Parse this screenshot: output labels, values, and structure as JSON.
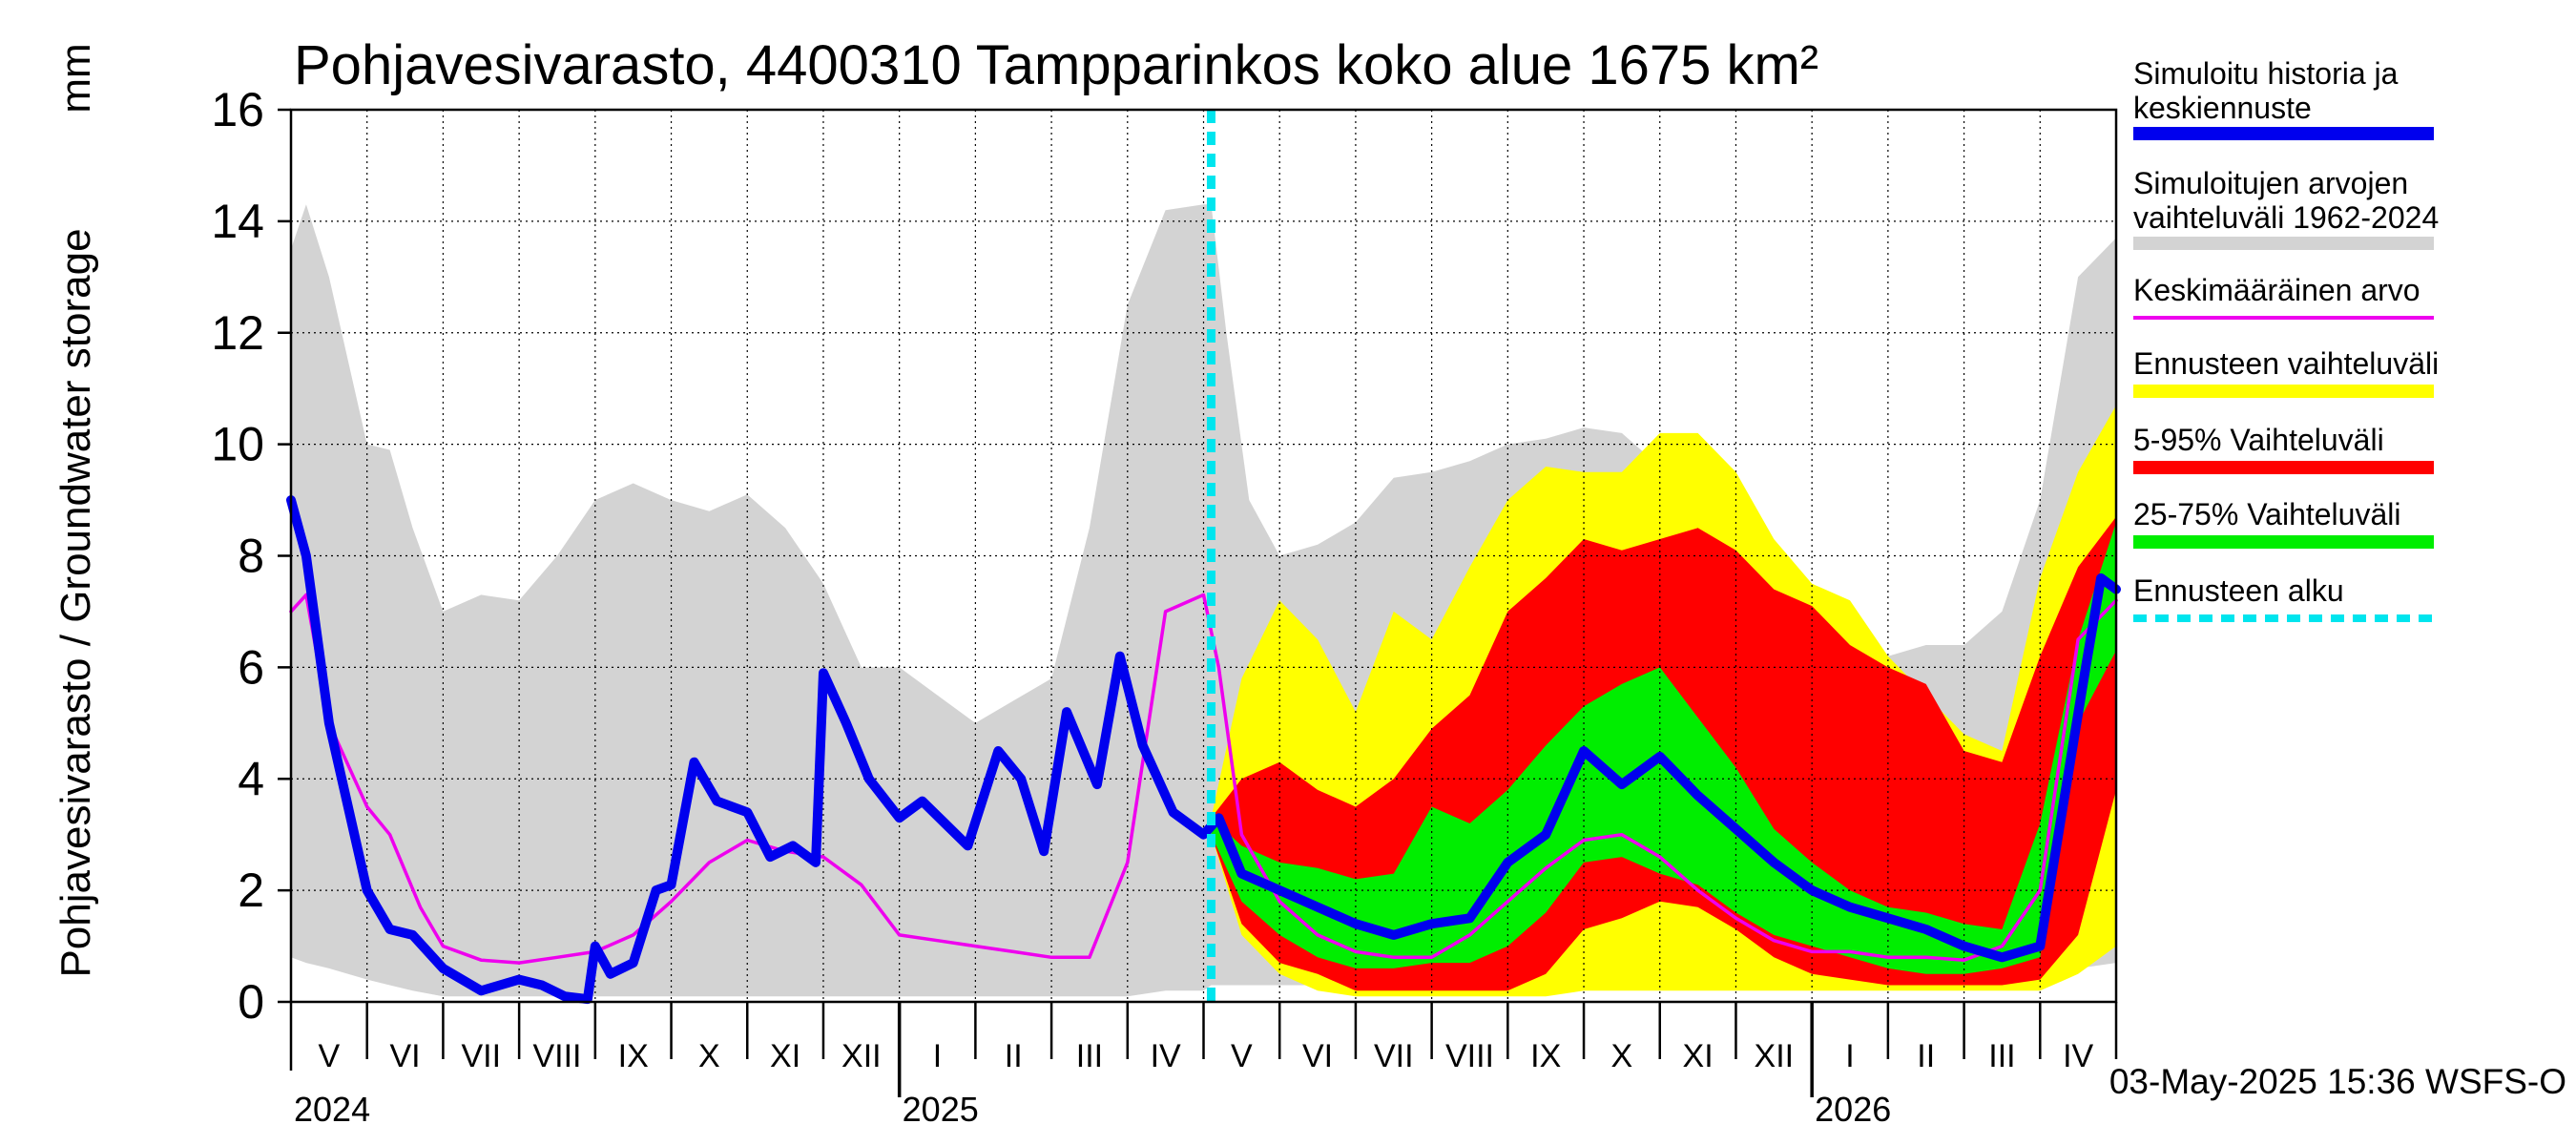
{
  "chart_data": {
    "type": "area",
    "title": "Pohjavesivarasto, 4400310 Tampparinkos koko alue 1675 km²",
    "ylabel": "Pohjavesivarasto / Groundwater storage",
    "yunit": "mm",
    "ylim": [
      0,
      16
    ],
    "yticks": [
      0,
      2,
      4,
      6,
      8,
      10,
      12,
      14,
      16
    ],
    "xlim": [
      0,
      24
    ],
    "x_unit": "months since 1 May 2024",
    "month_labels": [
      "V",
      "VI",
      "VII",
      "VIII",
      "IX",
      "X",
      "XI",
      "XII",
      "I",
      "II",
      "III",
      "IV",
      "V",
      "VI",
      "VII",
      "VIII",
      "IX",
      "X",
      "XI",
      "XII",
      "I",
      "II",
      "III",
      "IV"
    ],
    "year_labels": [
      {
        "label": "2024",
        "x": 0
      },
      {
        "label": "2025",
        "x": 8
      },
      {
        "label": "2026",
        "x": 20
      }
    ],
    "forecast_start_x": 12.1,
    "legend": [
      {
        "label": "Simuloitu historia ja keskiennuste",
        "color": "#0000ee",
        "style": "thick"
      },
      {
        "label": "Simuloitujen arvojen vaihteluväli 1962-2024",
        "color": "#d3d3d3",
        "style": "thick"
      },
      {
        "label": "Keskimääräinen arvo",
        "color": "#ee00ee",
        "style": "thin"
      },
      {
        "label": "Ennusteen vaihteluväli",
        "color": "#ffff00",
        "style": "thick"
      },
      {
        "label": "5-95% Vaihteluväli",
        "color": "#ff0000",
        "style": "thick"
      },
      {
        "label": "25-75% Vaihteluväli",
        "color": "#00ee00",
        "style": "thick"
      },
      {
        "label": "Ennusteen alku",
        "color": "#00e5ee",
        "style": "dashed"
      }
    ],
    "series": [
      {
        "name": "Simuloitujen arvojen vaihteluväli 1962-2024",
        "kind": "band",
        "color": "#d3d3d3",
        "x": [
          0,
          0.2,
          0.5,
          1,
          1.3,
          1.6,
          2,
          2.5,
          3,
          3.5,
          4,
          4.5,
          5,
          5.5,
          6,
          6.5,
          7,
          7.5,
          8,
          8.5,
          9,
          9.5,
          10,
          10.5,
          11,
          11.5,
          12,
          12.1,
          12.3,
          12.6,
          13,
          13.5,
          14,
          14.5,
          15,
          15.5,
          16,
          16.5,
          17,
          17.5,
          18,
          18.5,
          19,
          19.5,
          20,
          20.5,
          21,
          21.5,
          22,
          22.5,
          23,
          23.5,
          24
        ],
        "upper": [
          13.5,
          14.3,
          13,
          10,
          9.9,
          8.5,
          7,
          7.3,
          7.2,
          8,
          9,
          9.3,
          9,
          8.8,
          9.1,
          8.5,
          7.5,
          6,
          6,
          5.5,
          5,
          5.4,
          5.8,
          8.5,
          12.5,
          14.2,
          14.3,
          14.3,
          12,
          9,
          8,
          8.2,
          8.6,
          9.4,
          9.5,
          9.7,
          10,
          10.1,
          10.3,
          10.2,
          9.6,
          8.7,
          7.5,
          7,
          7,
          6.5,
          6.2,
          6.4,
          6.4,
          7,
          9,
          13,
          13.7
        ],
        "lower": [
          0.8,
          0.7,
          0.6,
          0.4,
          0.3,
          0.2,
          0.1,
          0.1,
          0.1,
          0.1,
          0.1,
          0.1,
          0.1,
          0.1,
          0.1,
          0.1,
          0.1,
          0.1,
          0.1,
          0.1,
          0.1,
          0.1,
          0.1,
          0.1,
          0.1,
          0.2,
          0.2,
          0.3,
          0.3,
          0.3,
          0.3,
          0.3,
          0.3,
          0.3,
          0.3,
          0.3,
          0.3,
          0.3,
          0.3,
          0.3,
          0.3,
          0.3,
          0.3,
          0.3,
          0.3,
          0.3,
          0.3,
          0.3,
          0.3,
          0.3,
          0.5,
          0.6,
          0.7
        ]
      },
      {
        "name": "Ennusteen vaihteluväli",
        "kind": "band",
        "color": "#ffff00",
        "x": [
          12.1,
          12.5,
          13,
          13.5,
          14,
          14.5,
          15,
          15.5,
          16,
          16.5,
          17,
          17.5,
          18,
          18.5,
          19,
          19.5,
          20,
          20.5,
          21,
          21.5,
          22,
          22.5,
          23,
          23.5,
          24
        ],
        "upper": [
          3.3,
          5.8,
          7.2,
          6.5,
          5.2,
          7,
          6.5,
          7.8,
          9,
          9.6,
          9.5,
          9.5,
          10.2,
          10.2,
          9.5,
          8.3,
          7.5,
          7.2,
          6.2,
          5.5,
          4.8,
          4.5,
          7.6,
          9.5,
          10.7
        ],
        "lower": [
          3.0,
          1.2,
          0.5,
          0.2,
          0.1,
          0.1,
          0.1,
          0.1,
          0.1,
          0.1,
          0.2,
          0.2,
          0.2,
          0.2,
          0.2,
          0.2,
          0.2,
          0.2,
          0.2,
          0.2,
          0.2,
          0.2,
          0.2,
          0.5,
          1
        ]
      },
      {
        "name": "5-95% Vaihteluväli",
        "kind": "band",
        "color": "#ff0000",
        "x": [
          12.1,
          12.5,
          13,
          13.5,
          14,
          14.5,
          15,
          15.5,
          16,
          16.5,
          17,
          17.5,
          18,
          18.5,
          19,
          19.5,
          20,
          20.5,
          21,
          21.5,
          22,
          22.5,
          23,
          23.5,
          24
        ],
        "upper": [
          3.3,
          4,
          4.3,
          3.8,
          3.5,
          4,
          4.9,
          5.5,
          7,
          7.6,
          8.3,
          8.1,
          8.3,
          8.5,
          8.1,
          7.4,
          7.1,
          6.4,
          6,
          5.7,
          4.5,
          4.3,
          6.2,
          7.8,
          8.7
        ],
        "lower": [
          3.0,
          1.4,
          0.7,
          0.5,
          0.2,
          0.2,
          0.2,
          0.2,
          0.2,
          0.5,
          1.3,
          1.5,
          1.8,
          1.7,
          1.3,
          0.8,
          0.5,
          0.4,
          0.3,
          0.3,
          0.3,
          0.3,
          0.4,
          1.2,
          3.8
        ]
      },
      {
        "name": "25-75% Vaihteluväli",
        "kind": "band",
        "color": "#00ee00",
        "x": [
          12.1,
          12.5,
          13,
          13.5,
          14,
          14.5,
          15,
          15.5,
          16,
          16.5,
          17,
          17.5,
          18,
          18.5,
          19,
          19.5,
          20,
          20.5,
          21,
          21.5,
          22,
          22.5,
          23,
          23.5,
          24
        ],
        "upper": [
          3.3,
          2.8,
          2.5,
          2.4,
          2.2,
          2.3,
          3.5,
          3.2,
          3.8,
          4.6,
          5.3,
          5.7,
          6,
          5.1,
          4.2,
          3.1,
          2.5,
          2.0,
          1.7,
          1.6,
          1.4,
          1.3,
          3.2,
          6.5,
          8.6
        ],
        "lower": [
          3.0,
          1.8,
          1.2,
          0.8,
          0.6,
          0.6,
          0.7,
          0.7,
          1.0,
          1.6,
          2.5,
          2.6,
          2.3,
          2.1,
          1.6,
          1.2,
          1.0,
          0.8,
          0.6,
          0.5,
          0.5,
          0.6,
          0.8,
          5,
          6.3
        ]
      },
      {
        "name": "Simuloitu historia ja keskiennuste",
        "kind": "line",
        "color": "#0000ee",
        "width": 10,
        "x": [
          0,
          0.2,
          0.5,
          0.8,
          1,
          1.3,
          1.6,
          2,
          2.5,
          3,
          3.3,
          3.6,
          3.9,
          4,
          4.2,
          4.5,
          4.8,
          5,
          5.3,
          5.6,
          6,
          6.3,
          6.6,
          6.9,
          7,
          7.3,
          7.6,
          8,
          8.3,
          8.6,
          8.9,
          9.3,
          9.6,
          9.9,
          10.2,
          10.6,
          10.9,
          11.2,
          11.6,
          12,
          12.2,
          12.5,
          13,
          13.5,
          14,
          14.5,
          15,
          15.5,
          16,
          16.5,
          17,
          17.5,
          18,
          18.5,
          19,
          19.5,
          20,
          20.5,
          21,
          21.5,
          22,
          22.5,
          23,
          23.3,
          23.6,
          23.8,
          24
        ],
        "y": [
          9,
          8,
          5,
          3.2,
          2,
          1.3,
          1.2,
          0.6,
          0.2,
          0.4,
          0.3,
          0.1,
          0.05,
          1.0,
          0.5,
          0.7,
          2.0,
          2.1,
          4.3,
          3.6,
          3.4,
          2.6,
          2.8,
          2.5,
          5.9,
          5.0,
          4.0,
          3.3,
          3.6,
          3.2,
          2.8,
          4.5,
          4.0,
          2.7,
          5.2,
          3.9,
          6.2,
          4.6,
          3.4,
          3.0,
          3.3,
          2.3,
          2.0,
          1.7,
          1.4,
          1.2,
          1.4,
          1.5,
          2.5,
          3.0,
          4.5,
          3.9,
          4.4,
          3.7,
          3.1,
          2.5,
          2.0,
          1.7,
          1.5,
          1.3,
          1.0,
          0.8,
          1.0,
          3.5,
          6,
          7.6,
          7.4
        ]
      },
      {
        "name": "Keskimääräinen arvo",
        "kind": "line",
        "color": "#ee00ee",
        "width": 3.5,
        "x": [
          0,
          0.2,
          0.5,
          1,
          1.3,
          1.7,
          2,
          2.5,
          3,
          3.5,
          4,
          4.5,
          5,
          5.5,
          6,
          6.5,
          7,
          7.5,
          8,
          8.5,
          9,
          9.5,
          10,
          10.5,
          11,
          11.5,
          12,
          12.2,
          12.5,
          13,
          13.5,
          14,
          14.5,
          15,
          15.5,
          16,
          16.5,
          17,
          17.5,
          18,
          18.5,
          19,
          19.5,
          20,
          20.5,
          21,
          21.5,
          22,
          22.5,
          23,
          23.5,
          24
        ],
        "y": [
          7,
          7.3,
          5,
          3.5,
          3.0,
          1.7,
          1.0,
          0.75,
          0.7,
          0.8,
          0.9,
          1.2,
          1.8,
          2.5,
          2.9,
          2.7,
          2.6,
          2.1,
          1.2,
          1.1,
          1.0,
          0.9,
          0.8,
          0.8,
          2.5,
          7.0,
          7.3,
          6,
          3,
          1.8,
          1.2,
          0.9,
          0.8,
          0.8,
          1.2,
          1.8,
          2.4,
          2.9,
          3.0,
          2.6,
          2.0,
          1.5,
          1.1,
          0.9,
          0.9,
          0.8,
          0.8,
          0.75,
          1.0,
          2.0,
          6.5,
          7.2
        ]
      }
    ]
  },
  "footer": {
    "timestamp": "03-May-2025 15:36 WSFS-O"
  }
}
